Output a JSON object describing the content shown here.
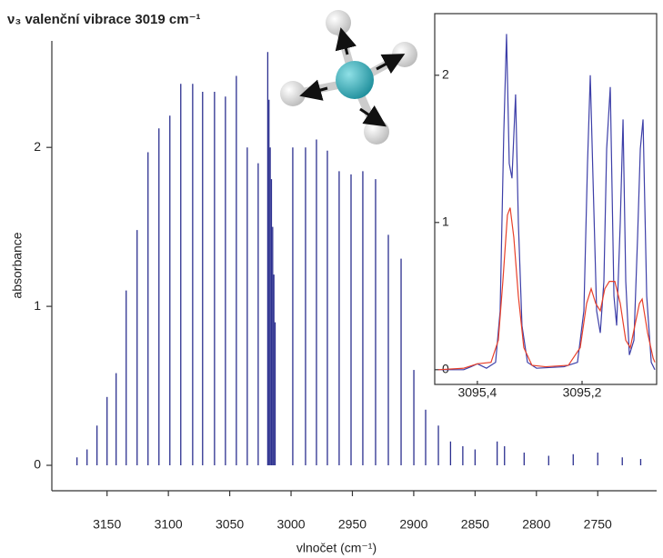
{
  "chart_data": [
    {
      "type": "stick",
      "title": "ν₃ valenční vibrace 3019 cm⁻¹",
      "xlabel": "vlnočet (cm⁻¹)",
      "ylabel": "absorbance",
      "color": "#2b2f8f",
      "xlim": [
        3195,
        2702
      ],
      "ylim": [
        -0.16,
        2.67
      ],
      "xticks": [
        3150,
        3100,
        3050,
        3000,
        2950,
        2900,
        2850,
        2800,
        2750
      ],
      "yticks": [
        0,
        1,
        2
      ],
      "x": [
        3174.5,
        3166.3,
        3158.2,
        3150,
        3142.6,
        3134.4,
        3125.5,
        3116.6,
        3107.7,
        3098.8,
        3089.9,
        3080.2,
        3072.1,
        3062.4,
        3053.5,
        3044.6,
        3035.7,
        3026.8,
        3019,
        3018,
        3017,
        3016,
        3015,
        3014,
        3013,
        2998.6,
        2988.2,
        2979.3,
        2970.4,
        2960.8,
        2951.1,
        2941.5,
        2931.1,
        2920.7,
        2910.3,
        2899.9,
        2890.3,
        2879.9,
        2870,
        2860,
        2850,
        2832,
        2826,
        2810,
        2790,
        2770,
        2750,
        2730,
        2715
      ],
      "values": [
        0.05,
        0.1,
        0.25,
        0.43,
        0.58,
        1.1,
        1.48,
        1.97,
        2.12,
        2.2,
        2.4,
        2.4,
        2.35,
        2.35,
        2.32,
        2.45,
        2.0,
        1.9,
        2.6,
        2.3,
        2.0,
        1.8,
        1.5,
        1.2,
        0.9,
        2.0,
        2.0,
        2.05,
        1.98,
        1.85,
        1.83,
        1.85,
        1.8,
        1.45,
        1.3,
        0.6,
        0.35,
        0.25,
        0.15,
        0.12,
        0.1,
        0.15,
        0.12,
        0.08,
        0.06,
        0.07,
        0.08,
        0.05,
        0.04
      ]
    },
    {
      "type": "line",
      "xlim": [
        3095.478,
        3095.061
      ],
      "ylim": [
        -0.1,
        2.4
      ],
      "xticks": [
        {
          "value": 3095.4,
          "label": "3095,4"
        },
        {
          "value": 3095.2,
          "label": "3095,2"
        }
      ],
      "yticks": [
        0,
        1,
        2
      ],
      "series": [
        {
          "color": "#3d3fa8",
          "x": [
            3095.4748,
            3095.4261,
            3095.4122,
            3095.4,
            3095.3826,
            3095.3652,
            3095.3565,
            3095.3496,
            3095.3443,
            3095.3391,
            3095.3339,
            3095.327,
            3095.3217,
            3095.3148,
            3095.3043,
            3095.287,
            3095.2348,
            3095.2087,
            3095.1965,
            3095.1896,
            3095.1843,
            3095.1791,
            3095.1722,
            3095.1652,
            3095.1583,
            3095.153,
            3095.1461,
            3095.1391,
            3095.1339,
            3095.127,
            3095.1217,
            3095.1165,
            3095.1096,
            3095.1009,
            3095.0939,
            3095.0887,
            3095.0835,
            3095.0765,
            3095.0678,
            3095.0609
          ],
          "values": [
            0.0,
            0.0,
            0.02,
            0.04,
            0.01,
            0.05,
            0.4,
            1.6,
            2.28,
            1.4,
            1.3,
            1.87,
            1.0,
            0.3,
            0.05,
            0.01,
            0.02,
            0.05,
            0.4,
            1.4,
            2.0,
            1.3,
            0.4,
            0.25,
            0.6,
            1.5,
            1.92,
            0.5,
            0.3,
            1.0,
            1.7,
            0.6,
            0.1,
            0.2,
            0.9,
            1.5,
            1.7,
            0.5,
            0.05,
            0.0
          ]
        },
        {
          "color": "#e8402a",
          "x": [
            3095.4748,
            3095.4261,
            3095.4,
            3095.3739,
            3095.36,
            3095.3513,
            3095.3426,
            3095.3374,
            3095.3304,
            3095.3217,
            3095.3113,
            3095.2957,
            3095.2696,
            3095.2261,
            3095.2035,
            3095.1913,
            3095.1826,
            3095.1739,
            3095.1652,
            3095.1565,
            3095.1478,
            3095.1374,
            3095.127,
            3095.1165,
            3095.1078,
            3095.0991,
            3095.0904,
            3095.0852,
            3095.0748,
            3095.0643,
            3095.0609
          ],
          "values": [
            0.0,
            0.01,
            0.04,
            0.05,
            0.2,
            0.6,
            1.05,
            1.1,
            0.9,
            0.5,
            0.15,
            0.03,
            0.02,
            0.03,
            0.15,
            0.45,
            0.55,
            0.45,
            0.4,
            0.55,
            0.6,
            0.6,
            0.45,
            0.2,
            0.15,
            0.3,
            0.45,
            0.48,
            0.25,
            0.08,
            0.05
          ]
        }
      ]
    }
  ]
}
